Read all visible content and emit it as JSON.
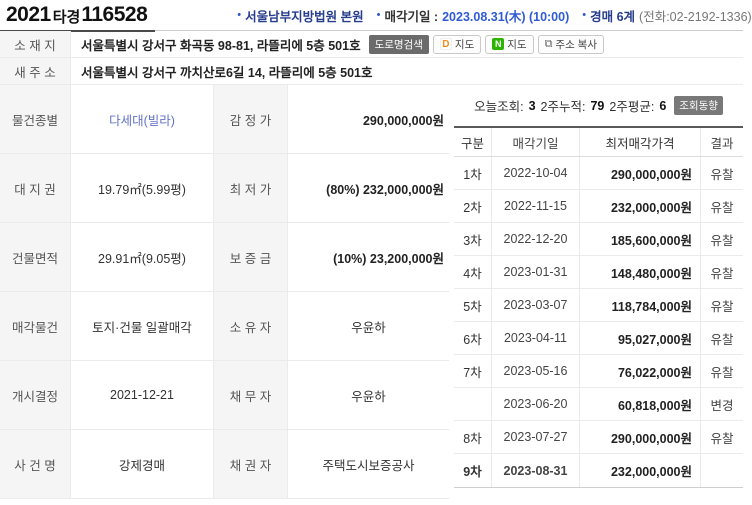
{
  "header": {
    "case_year": "2021",
    "case_type": "타경",
    "case_number": "116528",
    "bullet": "•",
    "court": "서울남부지방법원 본원",
    "sale_date_label": "매각기일 :",
    "sale_date": "2023.08.31(木) (10:00)",
    "dept": "경매 6계",
    "dept_phone": "(전화:02-2192-1336)"
  },
  "address": {
    "label": "소 재 지",
    "value": "서울특별시 강서구 화곡동 98-81, 라뜰리에 5층 501호",
    "road_search_button": "도로명검색",
    "daum_map_button": "지도",
    "naver_map_button": "지도",
    "copy_button": "주소 복사",
    "daum_icon_letter": "D",
    "naver_icon_letter": "N",
    "copy_icon_glyph": "⧉"
  },
  "new_address": {
    "label": "새 주 소",
    "value": "서울특별시 강서구 까치산로6길 14, 라뜰리에 5층 501호"
  },
  "details": {
    "rows": [
      {
        "l1": "물건종별",
        "v1": "다세대(빌라)",
        "l2": "감 정 가",
        "v2": "290,000,000원"
      },
      {
        "l1": "대 지 권",
        "v1": "19.79㎡(5.99평)",
        "l2": "최 저 가",
        "v2": "(80%) 232,000,000원"
      },
      {
        "l1": "건물면적",
        "v1": "29.91㎡(9.05평)",
        "l2": "보 증 금",
        "v2": "(10%) 23,200,000원"
      },
      {
        "l1": "매각물건",
        "v1": "토지·건물 일괄매각",
        "l2": "소 유 자",
        "v2": "우윤하"
      },
      {
        "l1": "개시결정",
        "v1": "2021-12-21",
        "l2": "채 무 자",
        "v2": "우윤하"
      },
      {
        "l1": "사 건 명",
        "v1": "강제경매",
        "l2": "채 권 자",
        "v2": "주택도시보증공사"
      }
    ]
  },
  "stats": {
    "today_label": "오늘조회:",
    "today": "3",
    "two_week_label": "2주누적:",
    "two_week": "79",
    "avg_label": "2주평균:",
    "avg": "6",
    "trend_button": "조회동향"
  },
  "history": {
    "headers": {
      "round": "구분",
      "date": "매각기일",
      "price": "최저매각가격",
      "result": "결과"
    },
    "rows": [
      {
        "round": "1차",
        "date": "2022-10-04",
        "price": "290,000,000원",
        "result": "유찰"
      },
      {
        "round": "2차",
        "date": "2022-11-15",
        "price": "232,000,000원",
        "result": "유찰"
      },
      {
        "round": "3차",
        "date": "2022-12-20",
        "price": "185,600,000원",
        "result": "유찰"
      },
      {
        "round": "4차",
        "date": "2023-01-31",
        "price": "148,480,000원",
        "result": "유찰"
      },
      {
        "round": "5차",
        "date": "2023-03-07",
        "price": "118,784,000원",
        "result": "유찰"
      },
      {
        "round": "6차",
        "date": "2023-04-11",
        "price": "95,027,000원",
        "result": "유찰"
      },
      {
        "round": "7차",
        "date": "2023-05-16",
        "price": "76,022,000원",
        "result": "유찰"
      },
      {
        "round": "",
        "date": "2023-06-20",
        "price": "60,818,000원",
        "result": "변경"
      },
      {
        "round": "8차",
        "date": "2023-07-27",
        "price": "290,000,000원",
        "result": "유찰"
      },
      {
        "round": "9차",
        "date": "2023-08-31",
        "price": "232,000,000원",
        "result": ""
      }
    ]
  },
  "colors": {
    "navy": "#263c8c",
    "link_blue": "#6272c9",
    "date_blue": "#2f5bd4",
    "label_bg": "#f5f5f5",
    "naver_green": "#2db400",
    "dark_button": "#6b6b6b"
  }
}
